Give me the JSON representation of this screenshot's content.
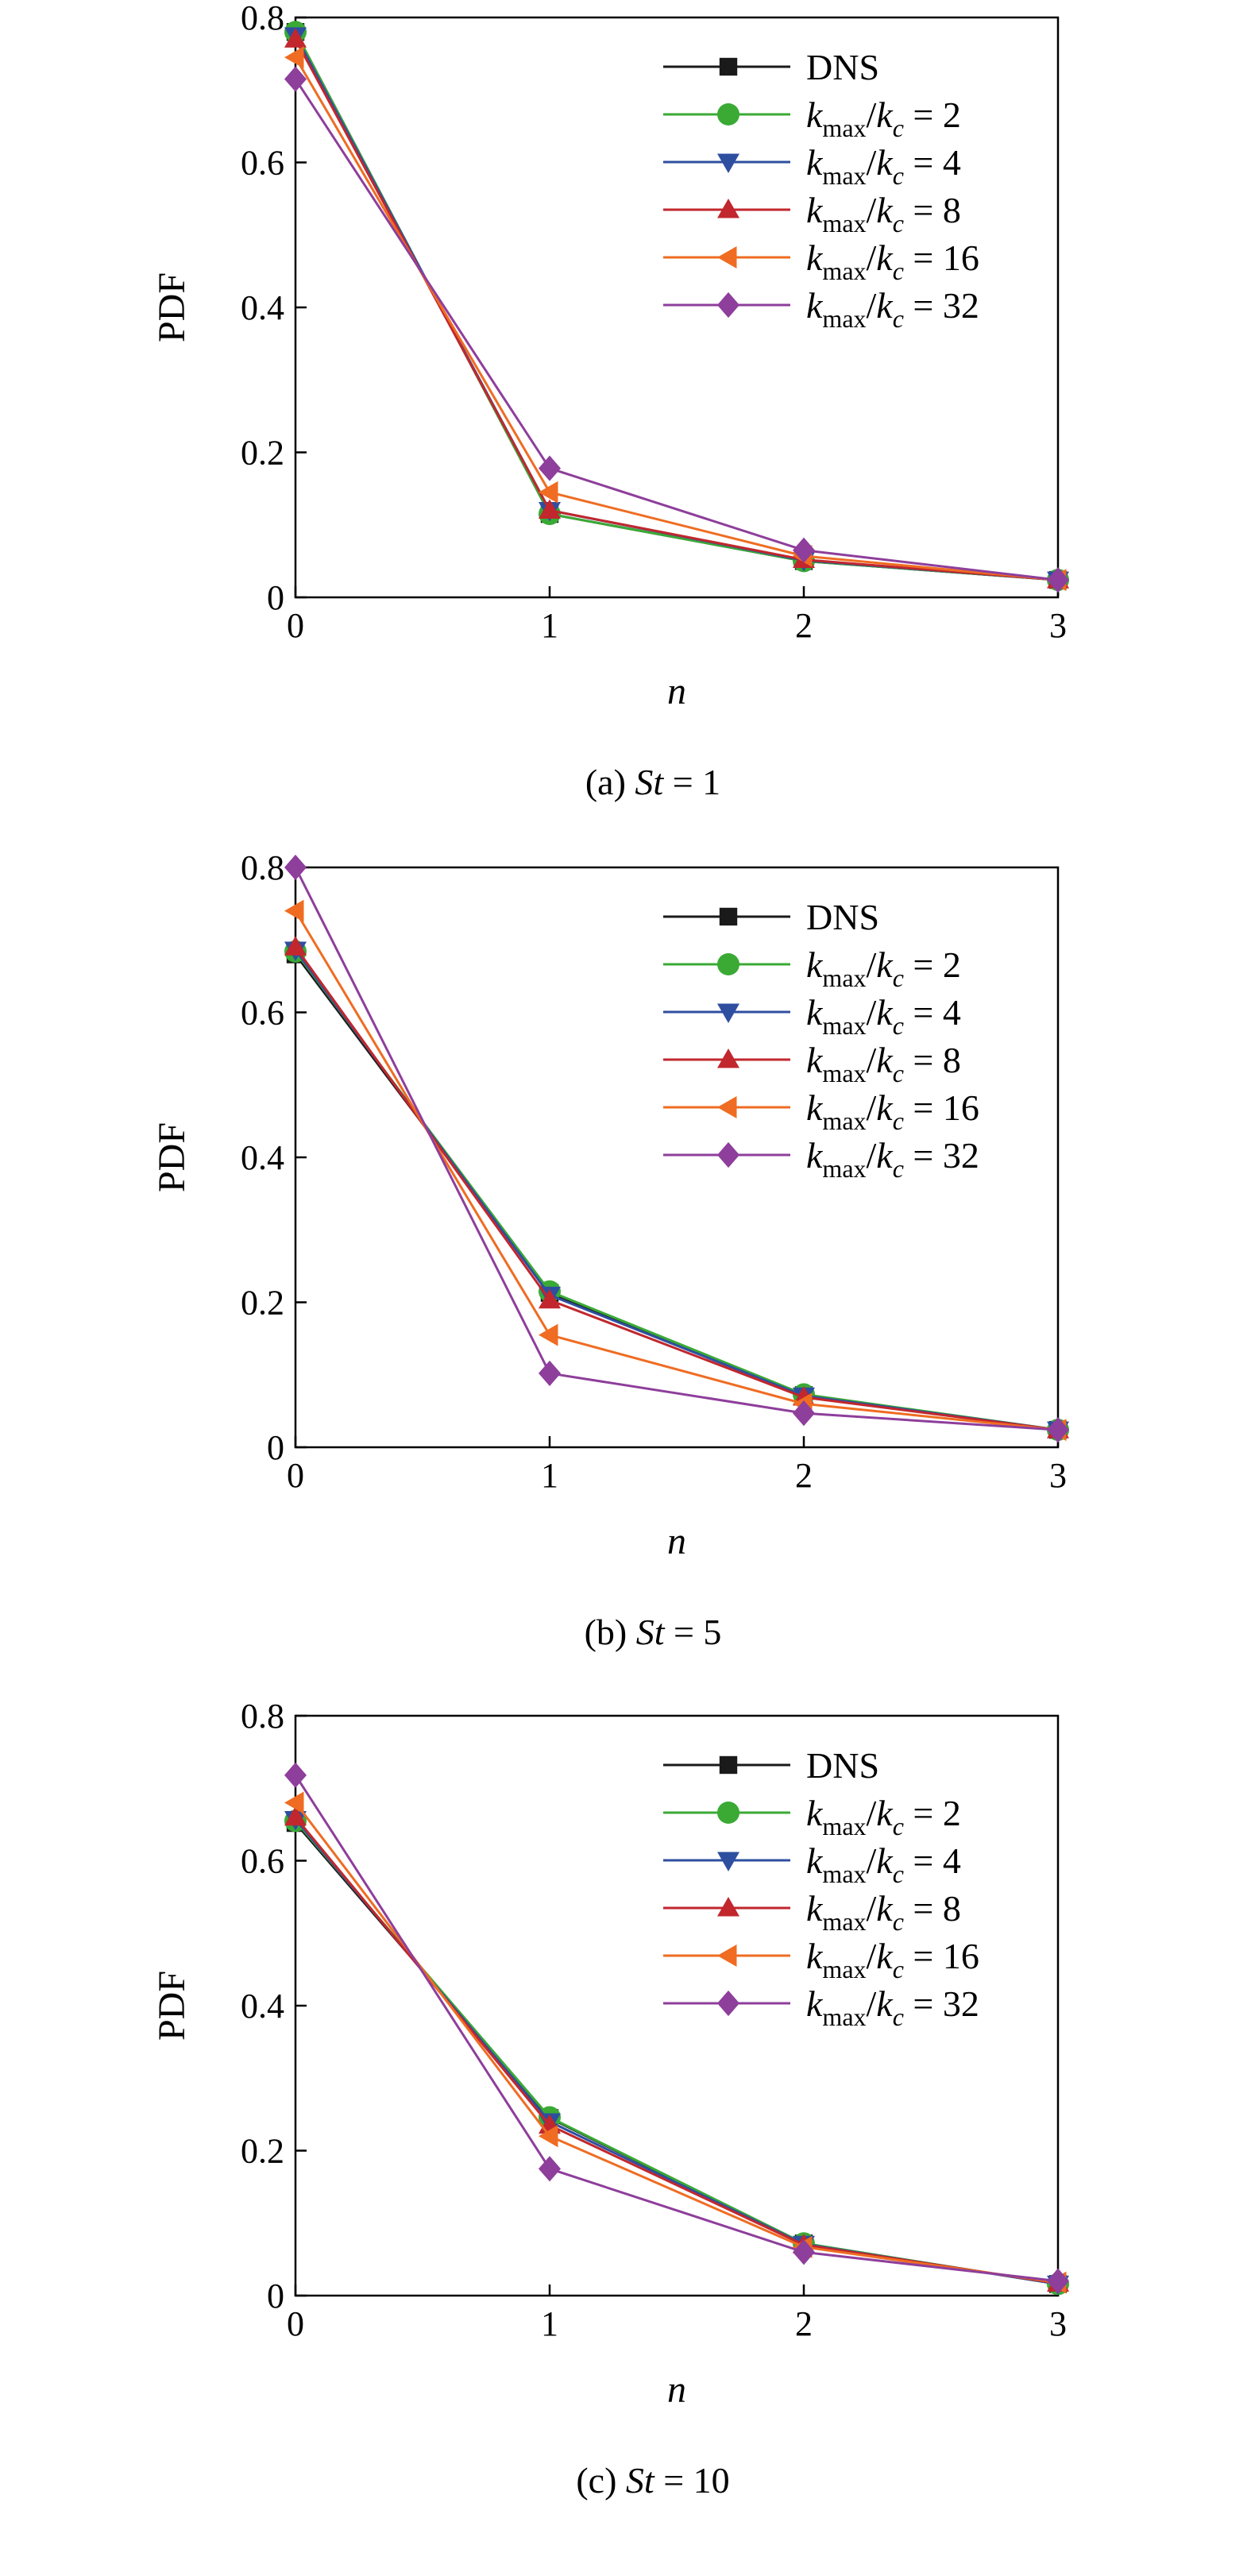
{
  "colors": {
    "DNS": "#1a1a1a",
    "k2": "#3aaa35",
    "k4": "#2e4fa0",
    "k8": "#c1272d",
    "k16": "#ef6c22",
    "k32": "#8e3e9b"
  },
  "legend": [
    {
      "key": "DNS",
      "text": "DNS",
      "marker": "square",
      "ratio": ""
    },
    {
      "key": "k2",
      "text": "",
      "marker": "circle",
      "ratio": "2"
    },
    {
      "key": "k4",
      "text": "",
      "marker": "triangle-down",
      "ratio": "4"
    },
    {
      "key": "k8",
      "text": "",
      "marker": "triangle-up",
      "ratio": "8"
    },
    {
      "key": "k16",
      "text": "",
      "marker": "triangle-left",
      "ratio": "16"
    },
    {
      "key": "k32",
      "text": "",
      "marker": "diamond",
      "ratio": "32"
    }
  ],
  "legend_math": {
    "k": "k",
    "max": "max",
    "slash": "/",
    "c": "c",
    "eq": " = "
  },
  "chart_data": [
    {
      "type": "line",
      "panel": "a",
      "caption_prefix": "(a) ",
      "caption_var": "St",
      "caption_suffix": " = 1",
      "xlabel": "n",
      "ylabel": "PDF",
      "xlim": [
        0,
        3
      ],
      "ylim": [
        0,
        0.8
      ],
      "x": [
        0,
        1,
        2,
        3
      ],
      "xticks": [
        "0",
        "1",
        "2",
        "3"
      ],
      "yticks": [
        "0",
        "0.2",
        "0.4",
        "0.6",
        "0.8"
      ],
      "series": [
        {
          "key": "DNS",
          "values": [
            0.78,
            0.115,
            0.05,
            0.024
          ]
        },
        {
          "key": "k2",
          "values": [
            0.78,
            0.115,
            0.05,
            0.024
          ]
        },
        {
          "key": "k4",
          "values": [
            0.775,
            0.12,
            0.051,
            0.024
          ]
        },
        {
          "key": "k8",
          "values": [
            0.77,
            0.12,
            0.052,
            0.024
          ]
        },
        {
          "key": "k16",
          "values": [
            0.745,
            0.145,
            0.057,
            0.024
          ]
        },
        {
          "key": "k32",
          "values": [
            0.715,
            0.178,
            0.065,
            0.024
          ]
        }
      ]
    },
    {
      "type": "line",
      "panel": "b",
      "caption_prefix": "(b) ",
      "caption_var": "St",
      "caption_suffix": " = 5",
      "xlabel": "n",
      "ylabel": "PDF",
      "xlim": [
        0,
        3
      ],
      "ylim": [
        0,
        0.8
      ],
      "x": [
        0,
        1,
        2,
        3
      ],
      "xticks": [
        "0",
        "1",
        "2",
        "3"
      ],
      "yticks": [
        "0",
        "0.2",
        "0.4",
        "0.6",
        "0.8"
      ],
      "series": [
        {
          "key": "DNS",
          "values": [
            0.68,
            0.213,
            0.072,
            0.024
          ]
        },
        {
          "key": "k2",
          "values": [
            0.684,
            0.215,
            0.073,
            0.024
          ]
        },
        {
          "key": "k4",
          "values": [
            0.686,
            0.21,
            0.071,
            0.024
          ]
        },
        {
          "key": "k8",
          "values": [
            0.69,
            0.203,
            0.069,
            0.024
          ]
        },
        {
          "key": "k16",
          "values": [
            0.74,
            0.155,
            0.06,
            0.024
          ]
        },
        {
          "key": "k32",
          "values": [
            0.8,
            0.102,
            0.047,
            0.024
          ]
        }
      ]
    },
    {
      "type": "line",
      "panel": "c",
      "caption_prefix": "(c) ",
      "caption_var": "St",
      "caption_suffix": " = 10",
      "xlabel": "n",
      "ylabel": "PDF",
      "xlim": [
        0,
        3
      ],
      "ylim": [
        0,
        0.8
      ],
      "x": [
        0,
        1,
        2,
        3
      ],
      "xticks": [
        "0",
        "1",
        "2",
        "3"
      ],
      "yticks": [
        "0",
        "0.2",
        "0.4",
        "0.6",
        "0.8"
      ],
      "series": [
        {
          "key": "DNS",
          "values": [
            0.652,
            0.245,
            0.072,
            0.016
          ]
        },
        {
          "key": "k2",
          "values": [
            0.655,
            0.246,
            0.072,
            0.016
          ]
        },
        {
          "key": "k4",
          "values": [
            0.657,
            0.24,
            0.071,
            0.016
          ]
        },
        {
          "key": "k8",
          "values": [
            0.66,
            0.235,
            0.07,
            0.017
          ]
        },
        {
          "key": "k16",
          "values": [
            0.68,
            0.22,
            0.067,
            0.018
          ]
        },
        {
          "key": "k32",
          "values": [
            0.718,
            0.175,
            0.06,
            0.02
          ]
        }
      ]
    }
  ]
}
